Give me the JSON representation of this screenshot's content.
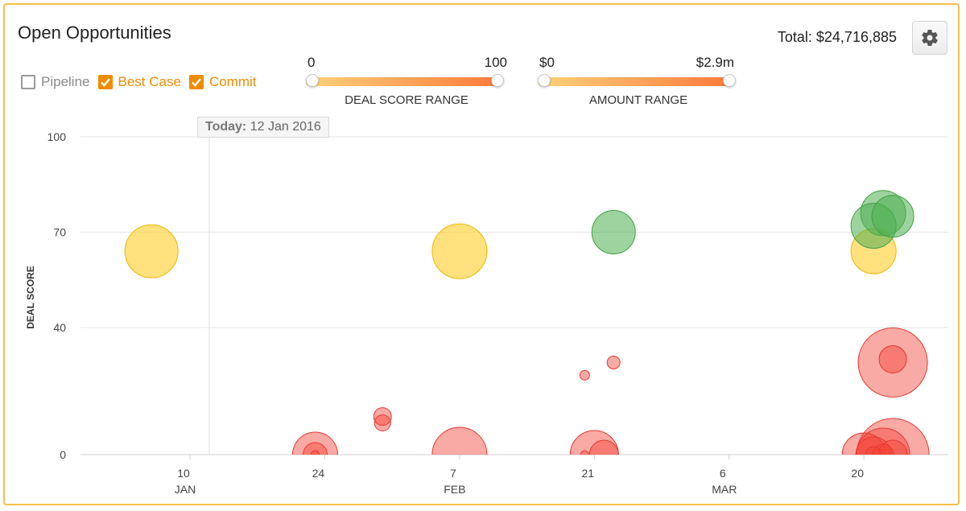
{
  "header": {
    "title": "Open Opportunities",
    "total": "Total: $24,716,885",
    "settings_icon": "gear-icon"
  },
  "filters": [
    {
      "label": "Pipeline",
      "checked": false
    },
    {
      "label": "Best Case",
      "checked": true
    },
    {
      "label": "Commit",
      "checked": true
    }
  ],
  "deal_score_range": {
    "min_label": "0",
    "max_label": "100",
    "title": "DEAL SCORE RANGE",
    "min": 0,
    "max": 100
  },
  "amount_range": {
    "min_label": "$0",
    "max_label": "$2.9m",
    "title": "AMOUNT RANGE"
  },
  "today": {
    "prefix": "Today:",
    "date": "12 Jan 2016"
  },
  "colors": {
    "commit": "#4caf50",
    "best_case": "#f5c518",
    "pipeline": "#f44336",
    "accent": "#f08c00"
  },
  "chart_data": {
    "type": "scatter",
    "ylabel": "DEAL SCORE",
    "xlabel": "",
    "ylim": [
      0,
      100
    ],
    "y_ticks": [
      "100",
      "70",
      "40",
      "0"
    ],
    "y_tick_values": [
      100,
      70,
      40,
      0
    ],
    "x_ticks": [
      {
        "day": "10",
        "month": "JAN",
        "date": "2016-01-10"
      },
      {
        "day": "24",
        "month": "",
        "date": "2016-01-24"
      },
      {
        "day": "7",
        "month": "FEB",
        "date": "2016-02-07"
      },
      {
        "day": "21",
        "month": "",
        "date": "2016-02-21"
      },
      {
        "day": "6",
        "month": "MAR",
        "date": "2016-03-06"
      },
      {
        "day": "20",
        "month": "",
        "date": "2016-03-20"
      }
    ],
    "today_marker": "2016-01-12",
    "grid": true,
    "points": [
      {
        "date": "2016-01-06",
        "score": 64,
        "r": 33,
        "cat": "best_case"
      },
      {
        "date": "2016-02-07",
        "score": 64,
        "r": 34,
        "cat": "best_case"
      },
      {
        "date": "2016-02-23",
        "score": 70,
        "r": 27,
        "cat": "commit"
      },
      {
        "date": "2016-03-21",
        "score": 64,
        "r": 28,
        "cat": "best_case"
      },
      {
        "date": "2016-03-22",
        "score": 76,
        "r": 28,
        "cat": "commit"
      },
      {
        "date": "2016-03-21",
        "score": 72,
        "r": 28,
        "cat": "commit"
      },
      {
        "date": "2016-03-23",
        "score": 75,
        "r": 26,
        "cat": "commit"
      },
      {
        "date": "2016-03-23",
        "score": 29,
        "r": 43,
        "cat": "pipeline"
      },
      {
        "date": "2016-03-23",
        "score": 30,
        "r": 17,
        "cat": "pipeline"
      },
      {
        "date": "2016-01-23",
        "score": 0,
        "r": 28,
        "cat": "pipeline"
      },
      {
        "date": "2016-01-23",
        "score": 0,
        "r": 15,
        "cat": "pipeline"
      },
      {
        "date": "2016-01-23",
        "score": 0,
        "r": 5,
        "cat": "pipeline"
      },
      {
        "date": "2016-01-30",
        "score": 12,
        "r": 11,
        "cat": "pipeline"
      },
      {
        "date": "2016-01-30",
        "score": 10,
        "r": 10,
        "cat": "pipeline"
      },
      {
        "date": "2016-02-07",
        "score": 0,
        "r": 34,
        "cat": "pipeline"
      },
      {
        "date": "2016-02-20",
        "score": 25,
        "r": 6,
        "cat": "pipeline"
      },
      {
        "date": "2016-02-23",
        "score": 29,
        "r": 8,
        "cat": "pipeline"
      },
      {
        "date": "2016-02-21",
        "score": 0,
        "r": 30,
        "cat": "pipeline"
      },
      {
        "date": "2016-02-22",
        "score": 0,
        "r": 18,
        "cat": "pipeline"
      },
      {
        "date": "2016-02-20",
        "score": 0,
        "r": 5,
        "cat": "pipeline"
      },
      {
        "date": "2016-03-23",
        "score": 0,
        "r": 45,
        "cat": "pipeline"
      },
      {
        "date": "2016-03-22",
        "score": 0,
        "r": 33,
        "cat": "pipeline"
      },
      {
        "date": "2016-03-20",
        "score": 0,
        "r": 27,
        "cat": "pipeline"
      },
      {
        "date": "2016-03-21",
        "score": 0,
        "r": 22,
        "cat": "pipeline"
      },
      {
        "date": "2016-03-23",
        "score": 0,
        "r": 18,
        "cat": "pipeline"
      },
      {
        "date": "2016-03-22",
        "score": 0,
        "r": 13,
        "cat": "pipeline"
      },
      {
        "date": "2016-03-21",
        "score": 0,
        "r": 10,
        "cat": "pipeline"
      }
    ]
  }
}
